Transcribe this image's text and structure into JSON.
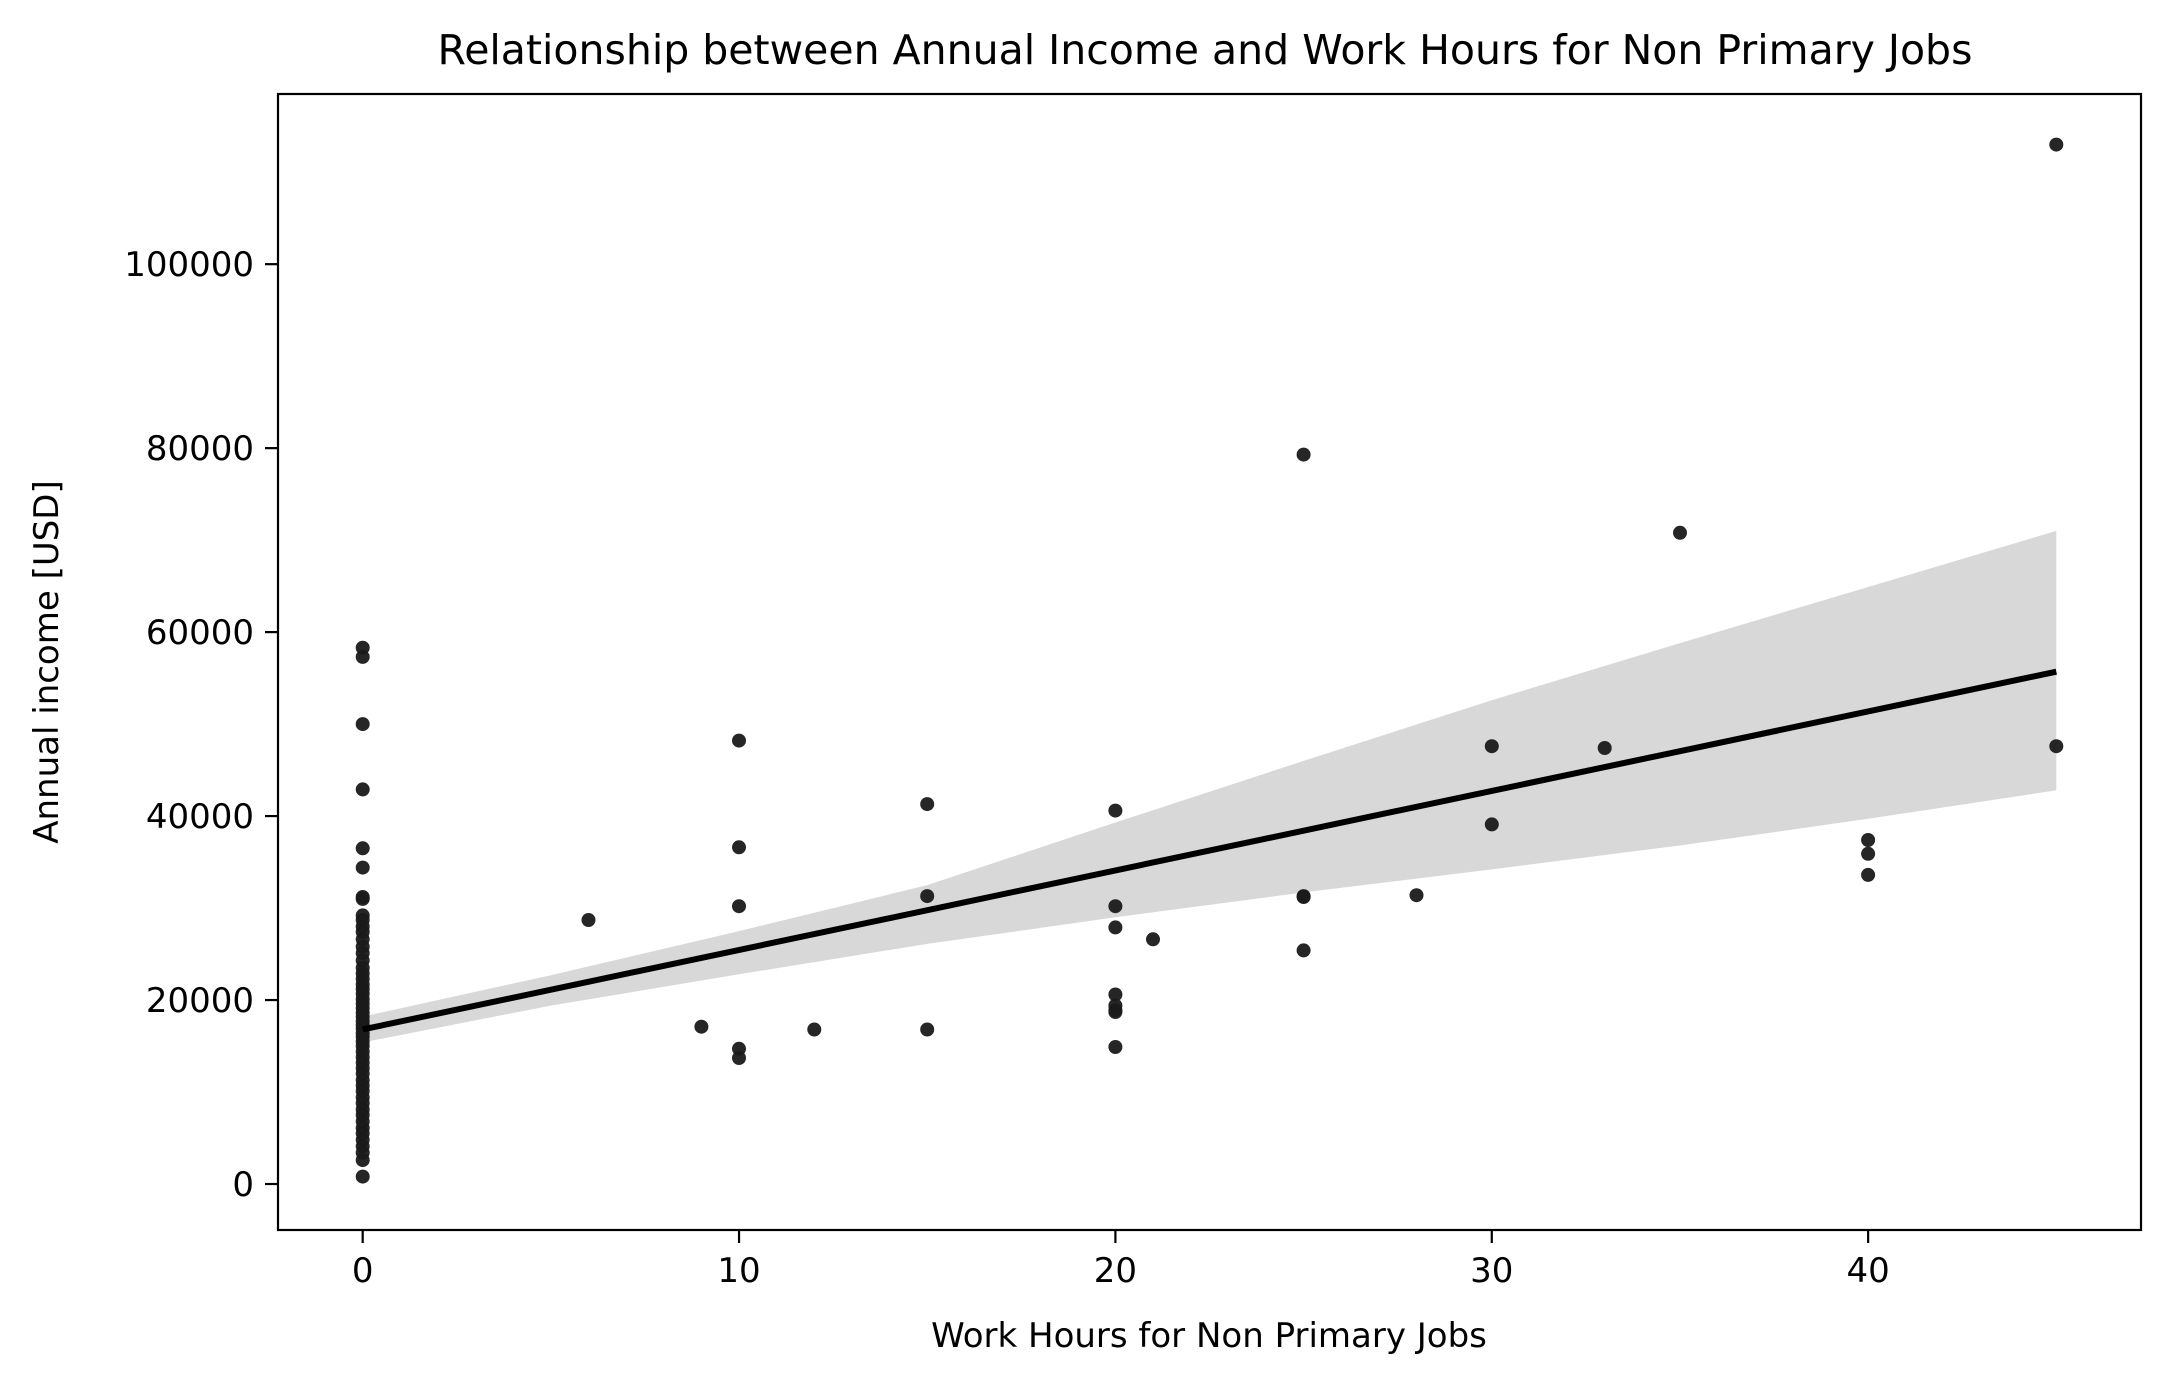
{
  "chart_data": {
    "type": "scatter",
    "title": "Relationship between Annual Income and Work Hours for Non Primary Jobs",
    "xlabel": "Work Hours for Non Primary Jobs",
    "ylabel": "Annual income [USD]",
    "xlim": [
      -2.25,
      47.25
    ],
    "ylim": [
      -5000,
      118500
    ],
    "x_ticks": [
      0,
      10,
      20,
      30,
      40
    ],
    "y_ticks": [
      0,
      20000,
      40000,
      60000,
      80000,
      100000
    ],
    "grid": false,
    "colors": {
      "points": "#1a1a1a",
      "fit_line": "#000000",
      "band": "#d8d8d8"
    },
    "regression_line": {
      "x": [
        0,
        45
      ],
      "y": [
        16800,
        55700
      ]
    },
    "confidence_band": {
      "x": [
        0,
        5,
        10,
        15,
        20,
        25,
        30,
        35,
        40,
        45
      ],
      "lower": [
        15400,
        19400,
        22800,
        26100,
        29000,
        31700,
        34200,
        36800,
        39700,
        42800
      ],
      "upper": [
        18200,
        22700,
        27500,
        32500,
        39300,
        46000,
        52600,
        58800,
        64900,
        71000
      ]
    },
    "points": {
      "x": [
        0,
        0,
        0,
        0,
        0,
        0,
        0,
        0,
        0,
        0,
        0,
        0,
        0,
        0,
        0,
        0,
        0,
        0,
        0,
        0,
        0,
        0,
        0,
        0,
        0,
        0,
        0,
        0,
        0,
        0,
        0,
        0,
        0,
        0,
        0,
        0,
        0,
        0,
        0,
        0,
        0,
        0,
        0,
        0,
        0,
        0,
        0,
        0,
        0,
        0,
        0,
        0,
        0,
        0,
        6,
        9,
        10,
        10,
        10,
        10,
        10,
        12,
        15,
        15,
        15,
        20,
        20,
        20,
        20,
        20,
        20,
        20,
        20,
        21,
        25,
        25,
        25,
        25,
        28,
        30,
        30,
        33,
        35,
        40,
        40,
        40,
        45,
        45
      ],
      "y": [
        58300,
        57300,
        50000,
        42900,
        36500,
        34400,
        31200,
        31000,
        29200,
        28700,
        28000,
        27400,
        26600,
        25800,
        25100,
        24300,
        23500,
        22900,
        22300,
        21700,
        21200,
        20700,
        20100,
        19600,
        19100,
        18600,
        18200,
        17700,
        17300,
        16900,
        16400,
        16000,
        15500,
        15000,
        14400,
        13800,
        13200,
        12600,
        12000,
        11300,
        10700,
        10100,
        9400,
        8800,
        8100,
        7500,
        6800,
        6100,
        5500,
        4800,
        4100,
        3400,
        2600,
        800,
        28700,
        17100,
        48200,
        36600,
        30200,
        14700,
        13700,
        16800,
        41300,
        31300,
        16800,
        40600,
        30200,
        27900,
        20600,
        19400,
        18900,
        18700,
        14900,
        26600,
        79300,
        31300,
        25400,
        31200,
        31400,
        47600,
        39100,
        47400,
        70800,
        37400,
        35900,
        33600,
        113000,
        47600
      ]
    }
  }
}
